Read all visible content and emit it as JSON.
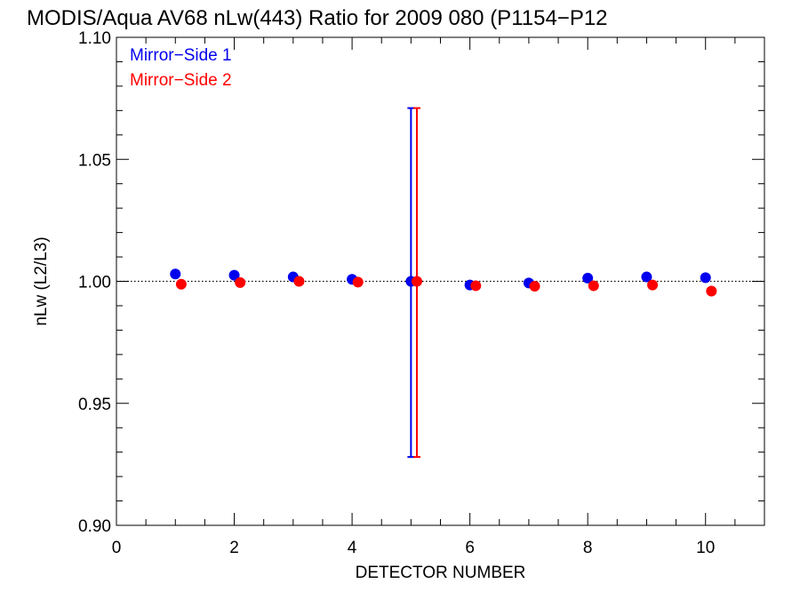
{
  "chart_data": {
    "type": "scatter",
    "title": "MODIS/Aqua AV68 nLw(443) Ratio for 2009 080 (P1154−P12",
    "xlabel": "DETECTOR NUMBER",
    "ylabel": "nLw (L2/L3)",
    "xlim": [
      0,
      11
    ],
    "ylim": [
      0.9,
      1.1
    ],
    "x_ticks": [
      0,
      2,
      4,
      6,
      8,
      10
    ],
    "x_tick_labels": [
      "0",
      "2",
      "4",
      "6",
      "8",
      "10"
    ],
    "y_ticks": [
      0.9,
      0.95,
      1.0,
      1.05,
      1.1
    ],
    "y_tick_labels": [
      "0.90",
      "0.95",
      "1.00",
      "1.05",
      "1.10"
    ],
    "reference_line": 1.0,
    "legend_position": "top-left",
    "series": [
      {
        "name": "Mirror−Side 1",
        "color": "#0000ee",
        "x": [
          1,
          2,
          3,
          4,
          5,
          6,
          7,
          8,
          9,
          10
        ],
        "y": [
          1.003,
          1.0025,
          1.0018,
          1.0008,
          1.0,
          0.9985,
          0.9993,
          1.0013,
          1.0018,
          1.0015
        ],
        "error_bars": [
          {
            "x": 5,
            "low": 0.928,
            "high": 1.071
          }
        ]
      },
      {
        "name": "Mirror−Side 2",
        "color": "#ff0000",
        "x": [
          1.1,
          2.1,
          3.1,
          4.1,
          5.1,
          6.1,
          7.1,
          8.1,
          9.1,
          10.1
        ],
        "y": [
          0.9988,
          0.9995,
          1.0,
          0.9997,
          1.0,
          0.9982,
          0.998,
          0.9982,
          0.9985,
          0.996
        ],
        "error_bars": [
          {
            "x": 5.1,
            "low": 0.928,
            "high": 1.071
          }
        ]
      }
    ]
  }
}
